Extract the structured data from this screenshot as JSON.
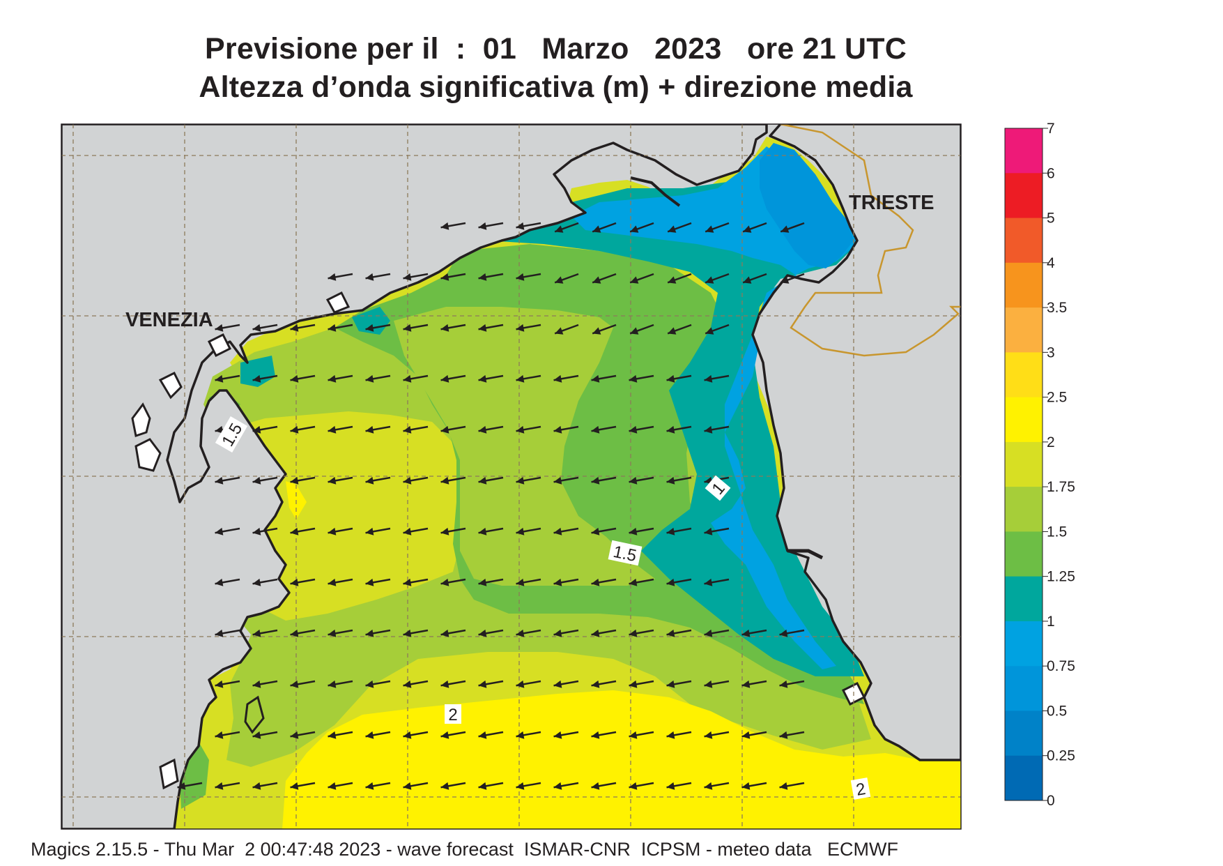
{
  "header": {
    "title_line1": "Previsione per il  :  01   Marzo   2023   ore 21 UTC",
    "title_line2": "Altezza d’onda significativa (m) + direzione media"
  },
  "footer": {
    "text": "Magics 2.15.5 - Thu Mar  2 00:47:48 2023 - wave forecast  ISMAR-CNR  ICPSM - meteo data   ECMWF"
  },
  "map": {
    "place_labels": [
      "VENEZIA",
      "TRIESTE"
    ],
    "contour_labels": [
      "1.5",
      "1",
      "1.5",
      "2",
      "2"
    ],
    "arrow_direction": "towards west-southwest",
    "land_color": "#d1d3d4",
    "coast_color": "#231f20",
    "border_color": "#c8962e"
  },
  "colorbar": {
    "ticks": [
      "7",
      "6",
      "5",
      "4",
      "3.5",
      "3",
      "2.5",
      "2",
      "1.75",
      "1.5",
      "1.25",
      "1",
      "0.75",
      "0.5",
      "0.25",
      "0"
    ],
    "colors": [
      "#ee1a78",
      "#ed1c24",
      "#f15a29",
      "#f7941d",
      "#fbb040",
      "#ffde17",
      "#fff200",
      "#d7df23",
      "#a6ce39",
      "#6dbe45",
      "#00a79d",
      "#00a2e1",
      "#0095da",
      "#0082c8",
      "#006ab4"
    ]
  }
}
